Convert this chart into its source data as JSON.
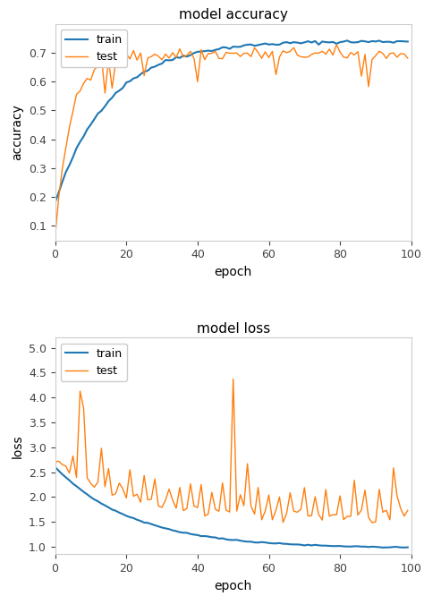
{
  "title_acc": "model accuracy",
  "title_loss": "model loss",
  "xlabel": "epoch",
  "ylabel_acc": "accuracy",
  "ylabel_loss": "loss",
  "n_epochs": 100,
  "train_color": "#1f77b4",
  "test_color": "#ff7f0e",
  "legend_train": "train",
  "legend_test": "test",
  "acc_ylim": [
    0.05,
    0.8
  ],
  "loss_ylim": [
    0.85,
    5.2
  ],
  "figsize": [
    4.74,
    6.66
  ],
  "dpi": 100,
  "bg_color": "#ffffff"
}
